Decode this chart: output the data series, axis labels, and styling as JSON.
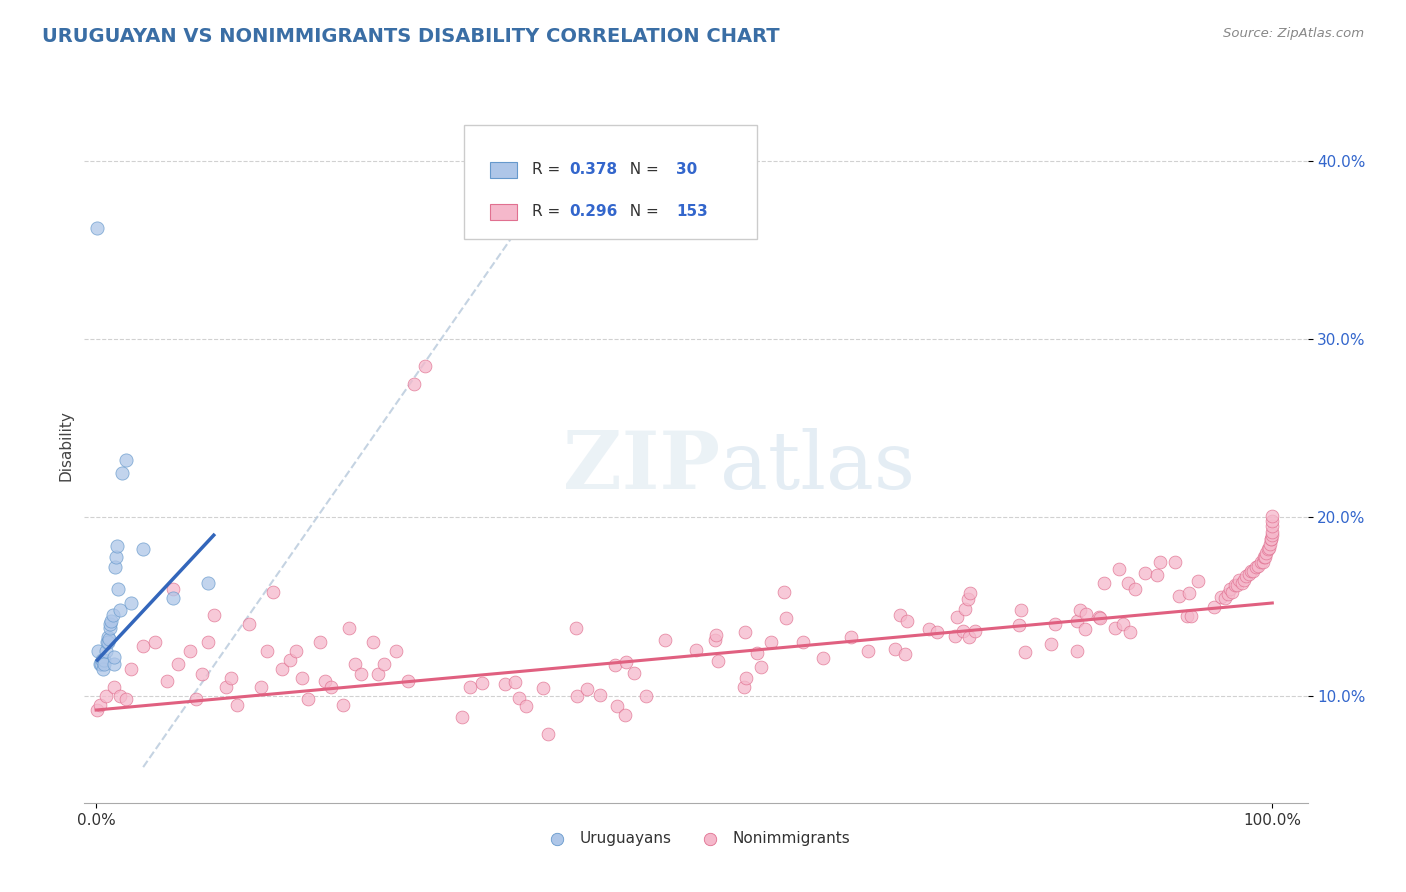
{
  "title": "URUGUAYAN VS NONIMMIGRANTS DISABILITY CORRELATION CHART",
  "source": "Source: ZipAtlas.com",
  "ylabel": "Disability",
  "xlabel": "",
  "background_color": "#ffffff",
  "plot_bg_color": "#ffffff",
  "grid_color": "#cccccc",
  "title_color": "#3a6ea5",
  "title_fontsize": 14,
  "uruguayan_color": "#aec6e8",
  "uruguayan_edge_color": "#6699cc",
  "uruguayan_line_color": "#3366bb",
  "nonimmigrant_color": "#f5b8cb",
  "nonimmigrant_edge_color": "#e07090",
  "nonimmigrant_line_color": "#e06080",
  "diagonal_color": "#bbccdd",
  "R_uruguayan": 0.378,
  "N_uruguayan": 30,
  "R_nonimmigrant": 0.296,
  "N_nonimmigrant": 153,
  "ylim_min": 0.04,
  "ylim_max": 0.44,
  "xlim_min": -0.01,
  "xlim_max": 1.03,
  "ytick_vals": [
    0.1,
    0.2,
    0.3,
    0.4
  ],
  "ytick_labels": [
    "10.0%",
    "20.0%",
    "30.0%",
    "40.0%"
  ],
  "xtick_vals": [
    0.0,
    1.0
  ],
  "xtick_labels": [
    "0.0%",
    "100.0%"
  ]
}
